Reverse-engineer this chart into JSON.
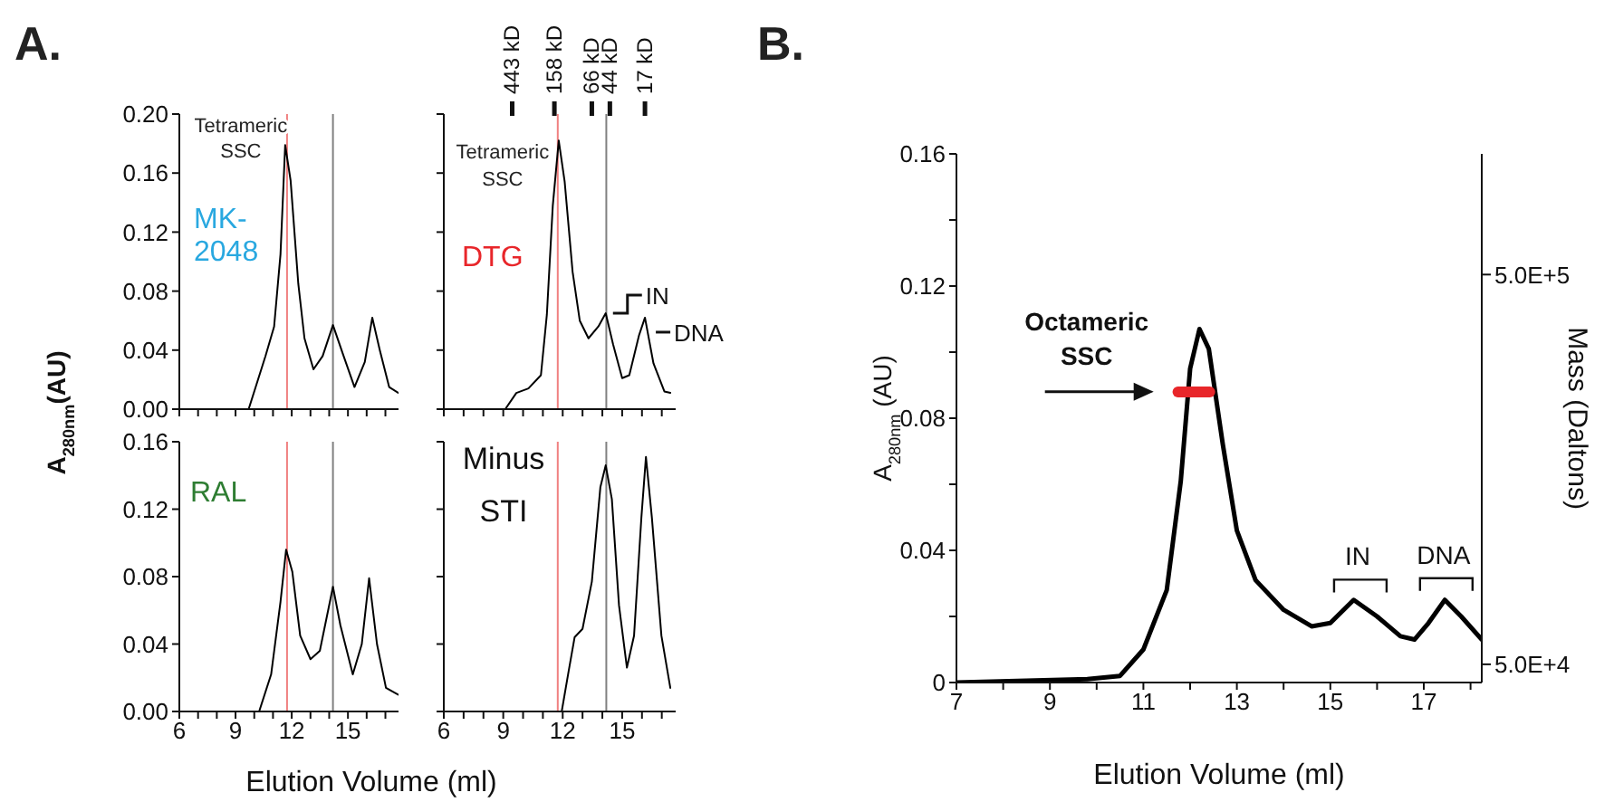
{
  "chart_data": [
    {
      "type": "line",
      "title": "A.",
      "ylabel": "A$_{280nm}$(AU)",
      "tick_labels": "y",
      "xlim": [
        6,
        17.7
      ],
      "xticks": [
        6,
        {
          "value": 7,
          "label": null
        },
        {
          "value": 8,
          "label": null
        },
        9,
        {
          "value": 10,
          "label": null
        },
        {
          "value": 11,
          "label": null
        },
        12,
        {
          "value": 13,
          "label": null
        },
        {
          "value": 14,
          "label": null
        },
        15,
        {
          "value": 16,
          "label": null
        },
        {
          "value": 17,
          "label": null
        }
      ],
      "ylim": [
        0,
        0.2
      ],
      "yticks": [
        {
          "value": 0,
          "label": "0.00"
        },
        0.04,
        0.08,
        0.12,
        0.16,
        {
          "value": 0.2,
          "label": "0.20"
        }
      ],
      "ref_lines": [
        {
          "axis": "x",
          "value": 11.75,
          "color": "#f08080"
        },
        {
          "axis": "x",
          "value": 14.2,
          "color": "#808080"
        }
      ],
      "annotations": [
        {
          "text": "Tetrameric SSC",
          "x": 11.7,
          "y": 0.179
        },
        "MK-2048"
      ],
      "series": [
        {
          "color": "#000000",
          "x": [
            9.7,
            10.6,
            11.06,
            11.4,
            11.65,
            11.94,
            12.35,
            12.68,
            13.16,
            13.65,
            14.2,
            14.77,
            15.35,
            15.9,
            16.3,
            16.7,
            17.2,
            17.7
          ],
          "values": [
            0,
            0.036,
            0.056,
            0.105,
            0.179,
            0.155,
            0.085,
            0.048,
            0.027,
            0.036,
            0.057,
            0.036,
            0.015,
            0.032,
            0.062,
            0.04,
            0.015,
            0.011
          ]
        }
      ]
    },
    {
      "type": "line",
      "tick_labels": false,
      "xlim": [
        6,
        17.7
      ],
      "xticks": [
        {
          "value": 6,
          "label": null
        },
        {
          "value": 7,
          "label": null
        },
        {
          "value": 8,
          "label": null
        },
        {
          "value": 9,
          "label": null
        },
        {
          "value": 10,
          "label": null
        },
        {
          "value": 11,
          "label": null
        },
        {
          "value": 12,
          "label": null
        },
        {
          "value": 13,
          "label": null
        },
        {
          "value": 14,
          "label": null
        },
        {
          "value": 15,
          "label": null
        },
        {
          "value": 16,
          "label": null
        },
        {
          "value": 17,
          "label": null
        }
      ],
      "ylim": [
        0,
        0.2
      ],
      "yticks": [
        {
          "value": 0,
          "label": null
        },
        {
          "value": 0.04,
          "label": null
        },
        {
          "value": 0.08,
          "label": null
        },
        {
          "value": 0.12,
          "label": null
        },
        {
          "value": 0.16,
          "label": null
        },
        {
          "value": 0.2,
          "label": null
        }
      ],
      "ref_lines": [
        {
          "axis": "x",
          "value": 11.75,
          "color": "#f08080"
        },
        {
          "axis": "x",
          "value": 14.2,
          "color": "#808080"
        }
      ],
      "annotations": [
        {
          "text": "Tetrameric SSC",
          "x": 11.8,
          "y": 0.182
        },
        "DTG",
        {
          "text": "IN",
          "x": 14.17,
          "y": 0.065
        },
        {
          "text": "DNA",
          "x": 16.15,
          "y": 0.062
        },
        {
          "text": "443 kD",
          "x": 9.45
        },
        {
          "text": "158 kD",
          "x": 11.58
        },
        {
          "text": "66 kD",
          "x": 13.47
        },
        {
          "text": "44 kD",
          "x": 14.38
        },
        {
          "text": "17 kD",
          "x": 16.15
        }
      ],
      "series": [
        {
          "color": "#000000",
          "x": [
            9.1,
            9.66,
            10.27,
            10.9,
            11.2,
            11.5,
            11.8,
            12.1,
            12.5,
            12.86,
            13.3,
            13.8,
            14.17,
            14.54,
            15.0,
            15.36,
            15.85,
            16.15,
            16.58,
            17.13,
            17.43
          ],
          "values": [
            0,
            0.011,
            0.014,
            0.023,
            0.064,
            0.138,
            0.182,
            0.154,
            0.093,
            0.06,
            0.048,
            0.056,
            0.065,
            0.044,
            0.021,
            0.023,
            0.05,
            0.062,
            0.031,
            0.012,
            0.011
          ]
        }
      ]
    },
    {
      "type": "line",
      "xlabel": "Elution Volume (ml)",
      "xlim": [
        6,
        17.7
      ],
      "xticks": [
        6,
        {
          "value": 7,
          "label": null
        },
        {
          "value": 8,
          "label": null
        },
        9,
        {
          "value": 10,
          "label": null
        },
        {
          "value": 11,
          "label": null
        },
        12,
        {
          "value": 13,
          "label": null
        },
        {
          "value": 14,
          "label": null
        },
        15,
        {
          "value": 16,
          "label": null
        },
        {
          "value": 17,
          "label": null
        }
      ],
      "ylim": [
        0,
        0.16
      ],
      "yticks": [
        {
          "value": 0,
          "label": "0.00"
        },
        0.04,
        0.08,
        0.12,
        0.16
      ],
      "ref_lines": [
        {
          "axis": "x",
          "value": 11.75,
          "color": "#f08080"
        },
        {
          "axis": "x",
          "value": 14.2,
          "color": "#808080"
        }
      ],
      "annotations": [
        "RAL"
      ],
      "series": [
        {
          "color": "#000000",
          "x": [
            10.26,
            10.9,
            11.4,
            11.7,
            12.03,
            12.45,
            13.0,
            13.5,
            14.2,
            14.6,
            15.26,
            15.74,
            16.13,
            16.55,
            17.03,
            17.68
          ],
          "values": [
            0,
            0.022,
            0.065,
            0.096,
            0.083,
            0.045,
            0.031,
            0.036,
            0.074,
            0.051,
            0.022,
            0.04,
            0.079,
            0.04,
            0.014,
            0.01
          ]
        }
      ]
    },
    {
      "type": "line",
      "tick_labels": "x",
      "xlim": [
        6,
        17.7
      ],
      "xticks": [
        6,
        {
          "value": 7,
          "label": null
        },
        {
          "value": 8,
          "label": null
        },
        9,
        {
          "value": 10,
          "label": null
        },
        {
          "value": 11,
          "label": null
        },
        12,
        {
          "value": 13,
          "label": null
        },
        {
          "value": 14,
          "label": null
        },
        15,
        {
          "value": 16,
          "label": null
        },
        {
          "value": 17,
          "label": null
        }
      ],
      "ylim": [
        0,
        0.16
      ],
      "yticks": [
        {
          "value": 0,
          "label": null
        },
        {
          "value": 0.04,
          "label": null
        },
        {
          "value": 0.08,
          "label": null
        },
        {
          "value": 0.12,
          "label": null
        },
        {
          "value": 0.16,
          "label": null
        }
      ],
      "ref_lines": [
        {
          "axis": "x",
          "value": 11.75,
          "color": "#f08080"
        },
        {
          "axis": "x",
          "value": 14.2,
          "color": "#808080"
        }
      ],
      "annotations": [
        "Minus STI"
      ],
      "series": [
        {
          "color": "#000000",
          "x": [
            11.95,
            12.3,
            12.6,
            13.0,
            13.47,
            13.9,
            14.17,
            14.48,
            14.84,
            15.24,
            15.6,
            15.97,
            16.2,
            16.5,
            16.98,
            17.43
          ],
          "values": [
            0,
            0.024,
            0.044,
            0.049,
            0.077,
            0.133,
            0.146,
            0.126,
            0.063,
            0.026,
            0.045,
            0.115,
            0.151,
            0.115,
            0.045,
            0.014
          ]
        }
      ]
    },
    {
      "type": "line",
      "title": "B.",
      "xlabel": "Elution Volume (ml)",
      "ylabel": "A$_{280nm}$ (AU)",
      "y2label": "Mass (Daltons)",
      "log": "y2",
      "xlim": [
        7,
        18.24
      ],
      "xticks": [
        7,
        {
          "value": 8,
          "label": null
        },
        9,
        {
          "value": 10,
          "label": null
        },
        11,
        {
          "value": 12,
          "label": null
        },
        13,
        {
          "value": 14,
          "label": null
        },
        15,
        {
          "value": 16,
          "label": null
        },
        17,
        {
          "value": 18,
          "label": null
        }
      ],
      "ylim": [
        0,
        0.16
      ],
      "yticks": [
        0,
        {
          "value": 0.02,
          "label": null
        },
        0.04,
        {
          "value": 0.06,
          "label": null
        },
        0.08,
        {
          "value": 0.1,
          "label": null
        },
        0.12,
        {
          "value": 0.14,
          "label": null
        },
        0.16
      ],
      "y2lim": [
        44900,
        1020000
      ],
      "y2ticks": [
        {
          "value": 50000,
          "label": "5.0E+4"
        },
        {
          "value": 500000,
          "label": "5.0E+5"
        }
      ],
      "annotations": [
        {
          "text": "Octameric SSC",
          "x": 11.8,
          "y": 0.088
        },
        {
          "text": "IN",
          "x": 15.7,
          "y": 0.024
        },
        {
          "text": "DNA",
          "x": 17.5,
          "y": 0.025
        }
      ],
      "series": [
        {
          "color": "#000000",
          "x": [
            7,
            9.8,
            10.5,
            11,
            11.5,
            11.8,
            12,
            12.2,
            12.4,
            12.7,
            13,
            13.4,
            14,
            14.6,
            15,
            15.5,
            16,
            16.5,
            16.8,
            17.1,
            17.45,
            17.8,
            18.24
          ],
          "values": [
            0,
            0.001,
            0.002,
            0.01,
            0.028,
            0.061,
            0.095,
            0.107,
            0.101,
            0.072,
            0.046,
            0.031,
            0.022,
            0.017,
            0.018,
            0.025,
            0.02,
            0.014,
            0.013,
            0.018,
            0.025,
            0.02,
            0.013
          ]
        },
        {
          "color": "#e8262a",
          "axis": "y2",
          "x": [
            11.74,
            12.42
          ],
          "values": [
            250000,
            250000
          ]
        }
      ]
    }
  ]
}
